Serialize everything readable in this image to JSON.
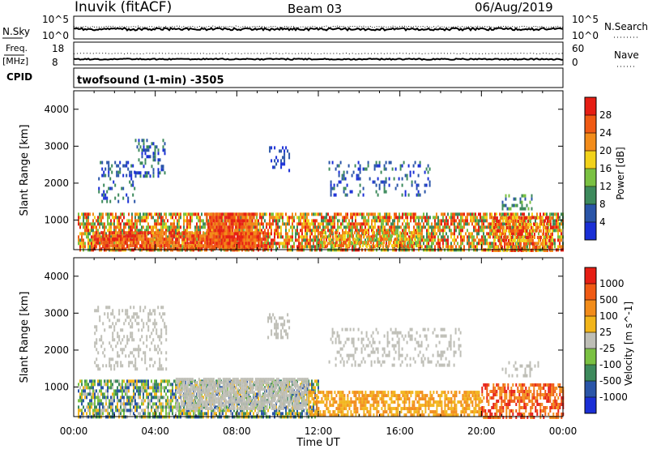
{
  "header": {
    "station": "Inuvik (fitACF)",
    "beam": "Beam 03",
    "date": "06/Aug/2019"
  },
  "noise_panel": {
    "left_label": "N.Sky",
    "right_label": "N.Search",
    "left_ticks": [
      "10^5",
      "10^0"
    ],
    "right_ticks": [
      "10^5",
      "10^0"
    ]
  },
  "freq_panel": {
    "left_label": "Freq.",
    "left_unit": "[MHz]",
    "right_label": "Nave",
    "left_ticks": [
      "18",
      "8"
    ],
    "right_ticks": [
      "60",
      "0"
    ]
  },
  "cpid": {
    "label": "CPID",
    "mode": "twofsound (1-min) -3505"
  },
  "axes": {
    "ylabel": "Slant Range [km]",
    "xlabel": "Time UT",
    "x_ticks": [
      "00:00",
      "04:00",
      "08:00",
      "12:00",
      "16:00",
      "20:00",
      "00:00"
    ],
    "y_ticks": [
      "1000",
      "2000",
      "3000",
      "4000"
    ]
  },
  "chart_data": [
    {
      "type": "heatmap",
      "panel": "power",
      "colorbar_label": "Power [dB]",
      "colorbar_ticks": [
        "28",
        "24",
        "20",
        "16",
        "12",
        "8",
        "4"
      ],
      "colors": [
        "#1a2fd6",
        "#2a55a8",
        "#3d8a5c",
        "#7ac142",
        "#f2d21a",
        "#f28c1a",
        "#f05a14",
        "#e61e14"
      ],
      "x_range_hours": [
        0,
        24
      ],
      "y_range_km": [
        200,
        4500
      ],
      "regions": [
        {
          "t0": 0.2,
          "t1": 24,
          "r0": 200,
          "r1": 1200,
          "density": 0.7,
          "level": [
            2,
            7
          ]
        },
        {
          "t0": 1.0,
          "t1": 9.5,
          "r0": 200,
          "r1": 700,
          "density": 0.8,
          "level": [
            5,
            7
          ]
        },
        {
          "t0": 6.5,
          "t1": 9.0,
          "r0": 250,
          "r1": 1200,
          "density": 0.85,
          "level": [
            5,
            7
          ]
        },
        {
          "t0": 12.0,
          "t1": 17.0,
          "r0": 300,
          "r1": 700,
          "density": 0.6,
          "level": [
            3,
            6
          ]
        },
        {
          "t0": 20.5,
          "t1": 23.5,
          "r0": 200,
          "r1": 1100,
          "density": 0.6,
          "level": [
            4,
            7
          ]
        },
        {
          "t0": 1.2,
          "t1": 3.0,
          "r0": 1500,
          "r1": 2600,
          "density": 0.25,
          "level": [
            0,
            2
          ]
        },
        {
          "t0": 3.0,
          "t1": 4.5,
          "r0": 2200,
          "r1": 3200,
          "density": 0.35,
          "level": [
            0,
            2
          ]
        },
        {
          "t0": 9.5,
          "t1": 10.6,
          "r0": 2300,
          "r1": 3000,
          "density": 0.3,
          "level": [
            0,
            1
          ]
        },
        {
          "t0": 12.5,
          "t1": 17.5,
          "r0": 1700,
          "r1": 2600,
          "density": 0.2,
          "level": [
            0,
            2
          ]
        },
        {
          "t0": 21.0,
          "t1": 22.5,
          "r0": 1300,
          "r1": 1700,
          "density": 0.3,
          "level": [
            1,
            3
          ]
        }
      ]
    },
    {
      "type": "heatmap",
      "panel": "velocity",
      "colorbar_label": "Velocity [m s^-1]",
      "colorbar_ticks": [
        "1000",
        "500",
        "100",
        "25",
        "-25",
        "-100",
        "-500",
        "-1000"
      ],
      "colors": [
        "#1a2fd6",
        "#2a55a8",
        "#3d8a5c",
        "#7ac142",
        "#bebeb6",
        "#f2b51a",
        "#f28c1a",
        "#f05a14",
        "#e61e14"
      ],
      "x_range_hours": [
        0,
        24
      ],
      "y_range_km": [
        200,
        4500
      ],
      "regions": [
        {
          "t0": 0.2,
          "t1": 12.0,
          "r0": 200,
          "r1": 1200,
          "density": 0.7,
          "level": [
            1,
            5
          ]
        },
        {
          "t0": 5.0,
          "t1": 11.5,
          "r0": 400,
          "r1": 1250,
          "density": 0.75,
          "level": [
            4,
            4
          ]
        },
        {
          "t0": 11.5,
          "t1": 20.0,
          "r0": 200,
          "r1": 900,
          "density": 0.65,
          "level": [
            5,
            6
          ]
        },
        {
          "t0": 20.0,
          "t1": 24.0,
          "r0": 200,
          "r1": 1100,
          "density": 0.6,
          "level": [
            6,
            8
          ]
        },
        {
          "t0": 1.0,
          "t1": 4.5,
          "r0": 1500,
          "r1": 3200,
          "density": 0.3,
          "level": [
            4,
            4
          ]
        },
        {
          "t0": 9.5,
          "t1": 10.6,
          "r0": 2300,
          "r1": 3000,
          "density": 0.3,
          "level": [
            4,
            4
          ]
        },
        {
          "t0": 12.5,
          "t1": 19.0,
          "r0": 1600,
          "r1": 2600,
          "density": 0.25,
          "level": [
            4,
            4
          ]
        },
        {
          "t0": 21.0,
          "t1": 22.8,
          "r0": 1300,
          "r1": 1700,
          "density": 0.3,
          "level": [
            4,
            4
          ]
        }
      ]
    }
  ]
}
